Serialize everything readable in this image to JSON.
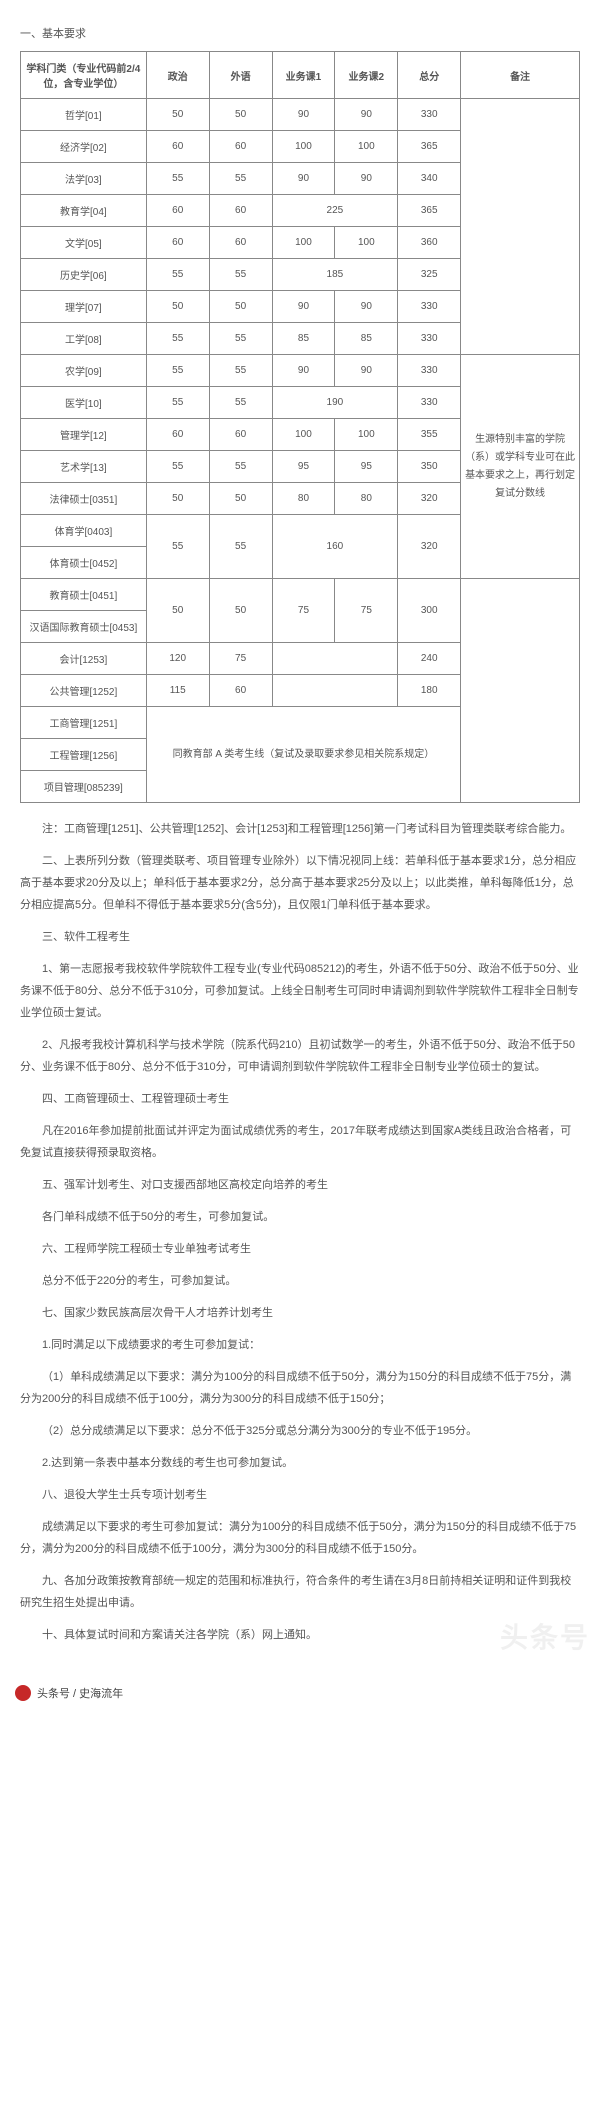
{
  "heading_basic": "一、基本要求",
  "table": {
    "headers": [
      "学科门类（专业代码前2/4位，含专业学位）",
      "政治",
      "外语",
      "业务课1",
      "业务课2",
      "总分",
      "备注"
    ],
    "rows": [
      {
        "c": [
          "哲学[01]",
          "50",
          "50",
          "90",
          "90",
          "330"
        ]
      },
      {
        "c": [
          "经济学[02]",
          "60",
          "60",
          "100",
          "100",
          "365"
        ]
      },
      {
        "c": [
          "法学[03]",
          "55",
          "55",
          "90",
          "90",
          "340"
        ]
      },
      {
        "c": [
          "教育学[04]",
          "60",
          "60",
          "225",
          "",
          "365"
        ],
        "merge34": true
      },
      {
        "c": [
          "文学[05]",
          "60",
          "60",
          "100",
          "100",
          "360"
        ]
      },
      {
        "c": [
          "历史学[06]",
          "55",
          "55",
          "185",
          "",
          "325"
        ],
        "merge34": true
      },
      {
        "c": [
          "理学[07]",
          "50",
          "50",
          "90",
          "90",
          "330"
        ]
      },
      {
        "c": [
          "工学[08]",
          "55",
          "55",
          "85",
          "85",
          "330"
        ]
      },
      {
        "c": [
          "农学[09]",
          "55",
          "55",
          "90",
          "90",
          "330"
        ]
      },
      {
        "c": [
          "医学[10]",
          "55",
          "55",
          "190",
          "",
          "330"
        ],
        "merge34": true
      },
      {
        "c": [
          "管理学[12]",
          "60",
          "60",
          "100",
          "100",
          "355"
        ]
      },
      {
        "c": [
          "艺术学[13]",
          "55",
          "55",
          "95",
          "95",
          "350"
        ]
      },
      {
        "c": [
          "法律硕士[0351]",
          "50",
          "50",
          "80",
          "80",
          "320"
        ]
      },
      {
        "c": [
          "体育学[0403]",
          "55",
          "55",
          "160",
          "",
          "320"
        ],
        "merge34": true,
        "sub2": "体育硕士[0452]"
      },
      {
        "c": [
          "教育硕士[0451]",
          "50",
          "50",
          "75",
          "75",
          "300"
        ],
        "sub2": "汉语国际教育硕士[0453]"
      },
      {
        "c": [
          "会计[1253]",
          "120",
          "75",
          "",
          "",
          "240"
        ],
        "blank34": true
      },
      {
        "c": [
          "公共管理[1252]",
          "115",
          "60",
          "",
          "",
          "180"
        ],
        "blank34": true
      }
    ],
    "note_text": "生源特别丰富的学院（系）或学科专业可在此基本要求之上，再行划定复试分数线",
    "tail_rows": [
      "工商管理[1251]",
      "工程管理[1256]",
      "项目管理[085239]"
    ],
    "tail_note": "同教育部 A 类考生线（复试及录取要求参见相关院系规定）"
  },
  "paras": [
    "注：工商管理[1251]、公共管理[1252]、会计[1253]和工程管理[1256]第一门考试科目为管理类联考综合能力。",
    "二、上表所列分数（管理类联考、项目管理专业除外）以下情况视同上线：若单科低于基本要求1分，总分相应高于基本要求20分及以上；单科低于基本要求2分，总分高于基本要求25分及以上；以此类推，单科每降低1分，总分相应提高5分。但单科不得低于基本要求5分(含5分)，且仅限1门单科低于基本要求。",
    "三、软件工程考生",
    "1、第一志愿报考我校软件学院软件工程专业(专业代码085212)的考生，外语不低于50分、政治不低于50分、业务课不低于80分、总分不低于310分，可参加复试。上线全日制考生可同时申请调剂到软件学院软件工程非全日制专业学位硕士复试。",
    "2、凡报考我校计算机科学与技术学院（院系代码210）且初试数学一的考生，外语不低于50分、政治不低于50分、业务课不低于80分、总分不低于310分，可申请调剂到软件学院软件工程非全日制专业学位硕士的复试。",
    "四、工商管理硕士、工程管理硕士考生",
    "凡在2016年参加提前批面试并评定为面试成绩优秀的考生，2017年联考成绩达到国家A类线且政治合格者，可免复试直接获得预录取资格。",
    "五、强军计划考生、对口支援西部地区高校定向培养的考生",
    "各门单科成绩不低于50分的考生，可参加复试。",
    "六、工程师学院工程硕士专业单独考试考生",
    "总分不低于220分的考生，可参加复试。",
    "七、国家少数民族高层次骨干人才培养计划考生",
    "1.同时满足以下成绩要求的考生可参加复试：",
    "（1）单科成绩满足以下要求：满分为100分的科目成绩不低于50分，满分为150分的科目成绩不低于75分，满分为200分的科目成绩不低于100分，满分为300分的科目成绩不低于150分；",
    "（2）总分成绩满足以下要求：总分不低于325分或总分满分为300分的专业不低于195分。",
    "2.达到第一条表中基本分数线的考生也可参加复试。",
    "八、退役大学生士兵专项计划考生",
    "成绩满足以下要求的考生可参加复试：满分为100分的科目成绩不低于50分，满分为150分的科目成绩不低于75分，满分为200分的科目成绩不低于100分，满分为300分的科目成绩不低于150分。",
    "九、各加分政策按教育部统一规定的范围和标准执行，符合条件的考生请在3月8日前持相关证明和证件到我校研究生招生处提出申请。",
    "十、具体复试时间和方案请关注各学院（系）网上通知。"
  ],
  "author": "头条号 / 史海流年",
  "watermark": "头条号"
}
